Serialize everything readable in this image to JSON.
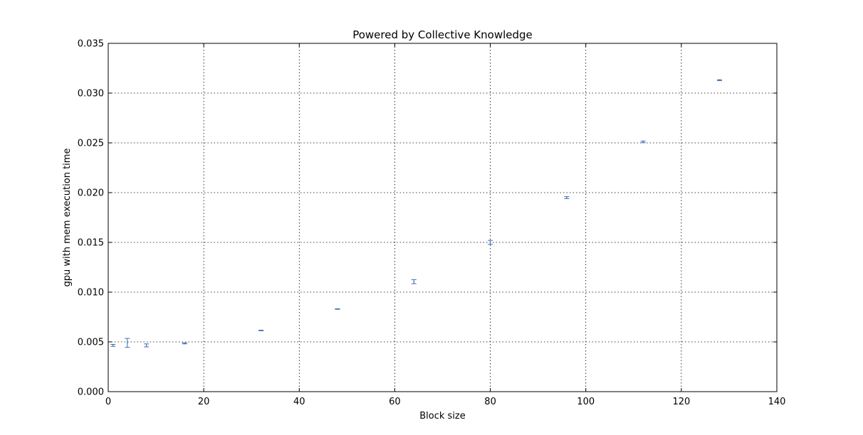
{
  "chart_data": {
    "type": "scatter",
    "title": "Powered by Collective Knowledge",
    "xlabel": "Block size",
    "ylabel": "gpu with mem execution time",
    "xlim": [
      0,
      140
    ],
    "ylim": [
      0,
      0.035
    ],
    "grid": true,
    "series_color": "#3b6fb6",
    "x_ticks": [
      "0",
      "20",
      "40",
      "60",
      "80",
      "100",
      "120",
      "140"
    ],
    "y_ticks": [
      "0.000",
      "0.005",
      "0.010",
      "0.015",
      "0.020",
      "0.025",
      "0.030",
      "0.035"
    ],
    "points": [
      {
        "x": 1,
        "y": 0.00465,
        "err": 0.0001
      },
      {
        "x": 4,
        "y": 0.0049,
        "err": 0.00045
      },
      {
        "x": 8,
        "y": 0.00465,
        "err": 0.00015
      },
      {
        "x": 16,
        "y": 0.00485,
        "err": 5e-05
      },
      {
        "x": 32,
        "y": 0.00615,
        "err": 3e-05
      },
      {
        "x": 48,
        "y": 0.0083,
        "err": 3e-05
      },
      {
        "x": 64,
        "y": 0.01105,
        "err": 0.0002
      },
      {
        "x": 80,
        "y": 0.015,
        "err": 0.0002
      },
      {
        "x": 96,
        "y": 0.0195,
        "err": 0.0001
      },
      {
        "x": 112,
        "y": 0.0251,
        "err": 8e-05
      },
      {
        "x": 128,
        "y": 0.0313,
        "err": 5e-05
      }
    ]
  }
}
